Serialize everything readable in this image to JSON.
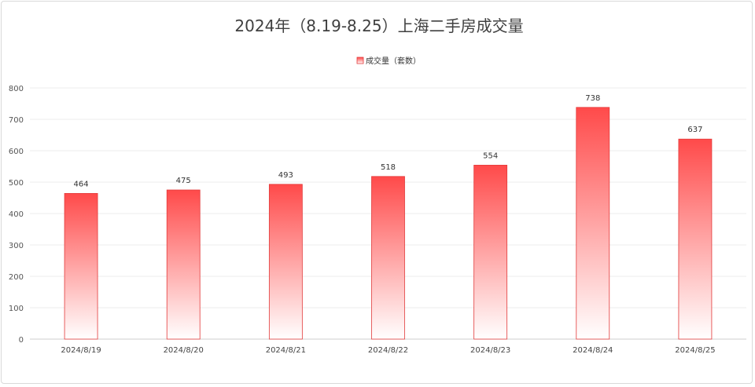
{
  "chart_data": {
    "type": "bar",
    "title": "2024年（8.19-8.25）上海二手房成交量",
    "categories": [
      "2024/8/19",
      "2024/8/20",
      "2024/8/21",
      "2024/8/22",
      "2024/8/23",
      "2024/8/24",
      "2024/8/25"
    ],
    "series": [
      {
        "name": "成交量（套数）",
        "values": [
          464,
          475,
          493,
          518,
          554,
          738,
          637
        ]
      }
    ],
    "yticks": [
      0,
      100,
      200,
      300,
      400,
      500,
      600,
      700,
      800
    ],
    "ylim": [
      0,
      800
    ],
    "grid": true,
    "legend": "top-center",
    "colors": {
      "bar_top": "#ff4a4a",
      "bar_bottom": "#ffffff",
      "bar_edge": "#e23b3b"
    }
  }
}
